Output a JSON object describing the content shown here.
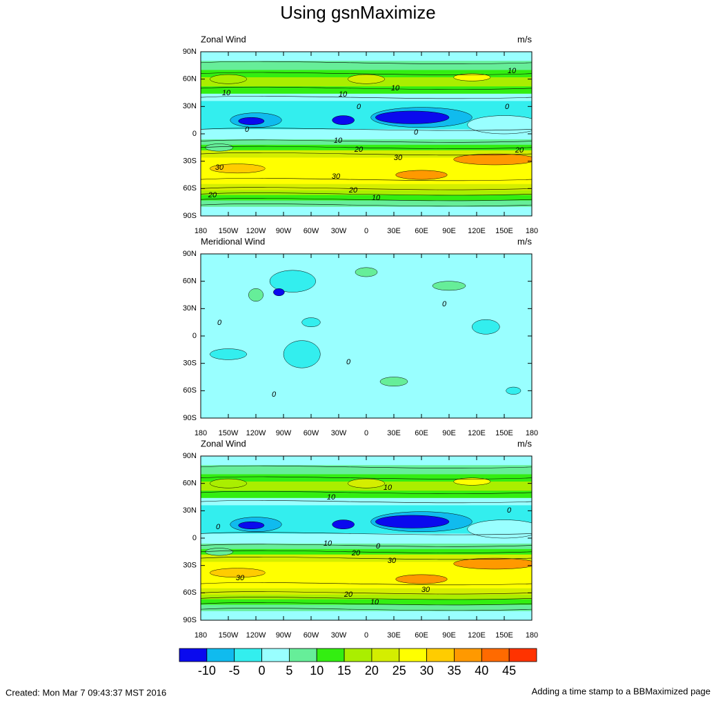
{
  "title": "Using gsnMaximize",
  "x_ticks": [
    "180",
    "150W",
    "120W",
    "90W",
    "60W",
    "30W",
    "0",
    "30E",
    "60E",
    "90E",
    "120E",
    "150E",
    "180"
  ],
  "y_ticks": [
    "90N",
    "60N",
    "30N",
    "0",
    "30S",
    "60S",
    "90S"
  ],
  "panels": [
    {
      "left": "Zonal Wind",
      "right": "m/s",
      "kind": "zonal",
      "contour_labels": [
        "10",
        "10",
        "10",
        "10",
        "0",
        "0",
        "0",
        "10",
        "0",
        "20",
        "30",
        "20",
        "30",
        "30",
        "20",
        "10",
        "20"
      ]
    },
    {
      "left": "Meridional Wind",
      "right": "m/s",
      "kind": "meridional",
      "contour_labels": [
        "0",
        "0",
        "0",
        "0"
      ]
    },
    {
      "left": "Zonal Wind",
      "right": "m/s",
      "kind": "zonal",
      "contour_labels": [
        "10",
        "10",
        "0",
        "0",
        "10",
        "0",
        "20",
        "30",
        "30",
        "30",
        "20",
        "10"
      ]
    }
  ],
  "colorbar": {
    "labels": [
      -10,
      -5,
      0,
      5,
      10,
      15,
      20,
      25,
      30,
      35,
      40,
      45
    ],
    "colors": [
      "#0a0aee",
      "#10bbee",
      "#33eeee",
      "#99ffff",
      "#66ee99",
      "#33ee11",
      "#aaee00",
      "#d4ee00",
      "#ffff00",
      "#ffcc00",
      "#ff9900",
      "#ff6a00",
      "#ff3300"
    ]
  },
  "footer": {
    "left": "Created: Mon Mar  7 09:43:37 MST 2016",
    "right": "Adding a time stamp to a BBMaximized page"
  }
}
